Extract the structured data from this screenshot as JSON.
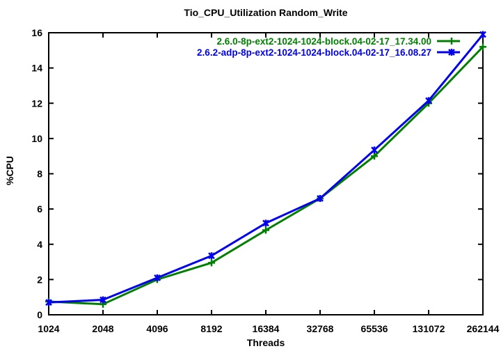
{
  "chart_data": {
    "type": "line",
    "title": "Tio_CPU_Utilization Random_Write",
    "xlabel": "Threads",
    "ylabel": "%CPU",
    "x_scale": "log2",
    "categories": [
      "1024",
      "2048",
      "4096",
      "8192",
      "16384",
      "32768",
      "65536",
      "131072",
      "262144"
    ],
    "yticks": [
      "0",
      "2",
      "4",
      "6",
      "8",
      "10",
      "12",
      "14",
      "16"
    ],
    "ylim": [
      0,
      16
    ],
    "grid": false,
    "legend_position": "top-right-inside",
    "series": [
      {
        "name": "2.6.0-8p-ext2-1024-1024-block.04-02-17_17.34.00",
        "color": "#008000",
        "marker": "plus",
        "values": [
          0.75,
          0.6,
          2.0,
          2.95,
          4.8,
          6.6,
          9.0,
          12.0,
          15.2
        ]
      },
      {
        "name": "2.6.2-adp-8p-ext2-1024-1024-block.04-02-17_16.08.27",
        "color": "#0000ee",
        "marker": "cross",
        "values": [
          0.7,
          0.85,
          2.1,
          3.35,
          5.2,
          6.6,
          9.35,
          12.15,
          15.9
        ]
      }
    ],
    "axis_color": "#000000",
    "background_color": "#ffffff"
  }
}
